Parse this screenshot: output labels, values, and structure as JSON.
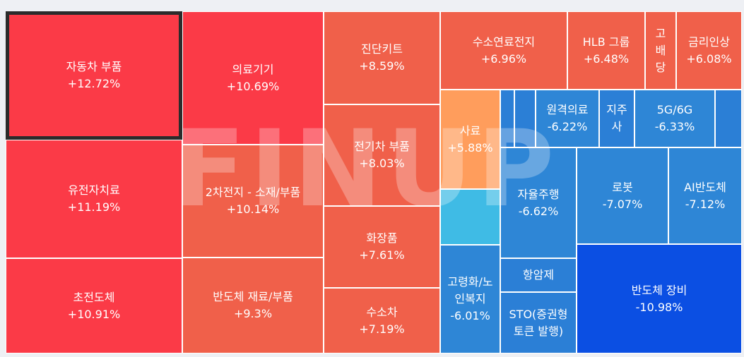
{
  "chart_data": {
    "type": "treemap",
    "watermark": "FINUP",
    "colors": {
      "up_strong": "#fb3a47",
      "up_mid": "#f0604a",
      "orange": "#ff9d5c",
      "cyan": "#3fbbe5",
      "down_light": "#2e86d6",
      "down_mid": "#2b7fd6",
      "down_strong": "#0b4fe3"
    },
    "selected": "자동차 부품",
    "tiles": [
      {
        "name": "자동차 부품",
        "value": "+12.72%",
        "change": 12.72
      },
      {
        "name": "유전자치료",
        "value": "+11.19%",
        "change": 11.19
      },
      {
        "name": "초전도체",
        "value": "+10.91%",
        "change": 10.91
      },
      {
        "name": "의료기기",
        "value": "+10.69%",
        "change": 10.69
      },
      {
        "name": "2차전지 - 소재/부품",
        "value": "+10.14%",
        "change": 10.14
      },
      {
        "name": "반도체 재료/부품",
        "value": "+9.3%",
        "change": 9.3
      },
      {
        "name": "진단키트",
        "value": "+8.59%",
        "change": 8.59
      },
      {
        "name": "전기차 부품",
        "value": "+8.03%",
        "change": 8.03
      },
      {
        "name": "화장품",
        "value": "+7.61%",
        "change": 7.61
      },
      {
        "name": "수소차",
        "value": "+7.19%",
        "change": 7.19
      },
      {
        "name": "수소연료전지",
        "value": "+6.96%",
        "change": 6.96
      },
      {
        "name": "HLB 그룹",
        "value": "+6.48%",
        "change": 6.48
      },
      {
        "name": "고\n배\n당",
        "value": "",
        "change": null
      },
      {
        "name": "금리인상",
        "value": "+6.08%",
        "change": 6.08
      },
      {
        "name": "사료",
        "value": "+5.88%",
        "change": 5.88
      },
      {
        "name": "",
        "value": "",
        "change": null
      },
      {
        "name": "",
        "value": "",
        "change": null
      },
      {
        "name": "",
        "value": "",
        "change": null
      },
      {
        "name": "원격의료",
        "value": "-6.22%",
        "change": -6.22
      },
      {
        "name": "지주\n사",
        "value": "",
        "change": null
      },
      {
        "name": "5G/6G",
        "value": "-6.33%",
        "change": -6.33
      },
      {
        "name": "",
        "value": "",
        "change": null
      },
      {
        "name": "자율주행",
        "value": "-6.62%",
        "change": -6.62
      },
      {
        "name": "로봇",
        "value": "-7.07%",
        "change": -7.07
      },
      {
        "name": "AI반도체",
        "value": "-7.12%",
        "change": -7.12
      },
      {
        "name": "고령화/노\n인복지",
        "value": "-6.01%",
        "change": -6.01
      },
      {
        "name": "항암제",
        "value": "",
        "change": null
      },
      {
        "name": "STO(증권형\n토큰 발행)",
        "value": "",
        "change": null
      },
      {
        "name": "반도체 장비",
        "value": "-10.98%",
        "change": -10.98
      }
    ]
  }
}
